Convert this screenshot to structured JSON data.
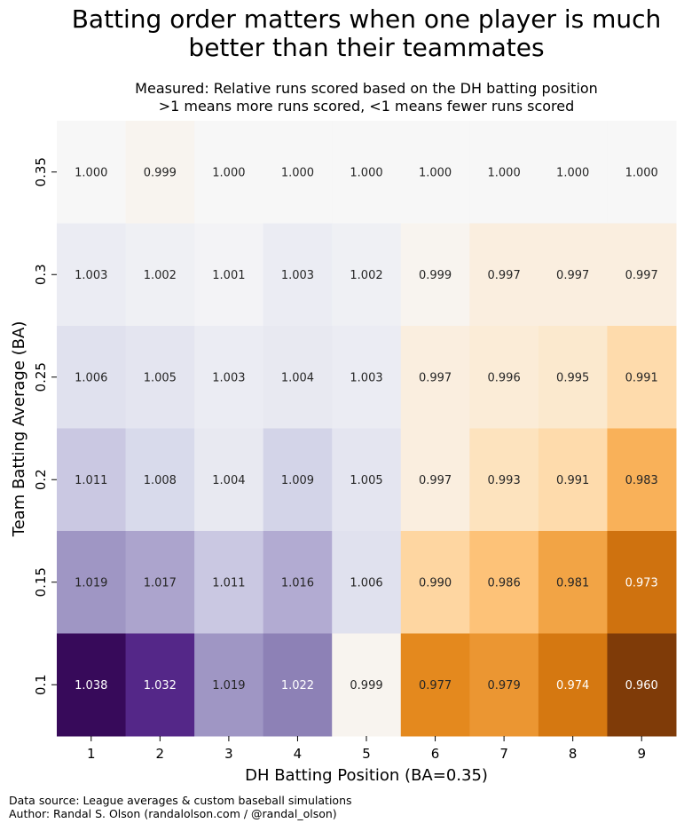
{
  "title_lines": [
    "Batting order matters when one player is much",
    "better than their teammates"
  ],
  "subtitle_lines": [
    "Measured: Relative runs scored based on the DH batting position",
    ">1 means more runs scored, <1 means fewer runs scored"
  ],
  "footer_lines": [
    "Data source: League averages & custom baseball simulations",
    "Author: Randal S. Olson (randalolson.com / @randal_olson)"
  ],
  "chart_data": {
    "type": "heatmap",
    "title": "Batting order matters when one player is much better than their teammates",
    "subtitle": "Measured: Relative runs scored based on the DH batting position\n>1 means more runs scored, <1 means fewer runs scored",
    "xlabel": "DH Batting Position (BA=0.35)",
    "ylabel": "Team Batting Average (BA)",
    "x": [
      "1",
      "2",
      "3",
      "4",
      "5",
      "6",
      "7",
      "8",
      "9"
    ],
    "y": [
      "0.35",
      "0.3",
      "0.25",
      "0.2",
      "0.15",
      "0.1"
    ],
    "values": [
      [
        1.0,
        0.999,
        1.0,
        1.0,
        1.0,
        1.0,
        1.0,
        1.0,
        1.0
      ],
      [
        1.003,
        1.002,
        1.001,
        1.003,
        1.002,
        0.999,
        0.997,
        0.997,
        0.997
      ],
      [
        1.006,
        1.005,
        1.003,
        1.004,
        1.003,
        0.997,
        0.996,
        0.995,
        0.991
      ],
      [
        1.011,
        1.008,
        1.004,
        1.009,
        1.005,
        0.997,
        0.993,
        0.991,
        0.983
      ],
      [
        1.019,
        1.017,
        1.011,
        1.016,
        1.006,
        0.99,
        0.986,
        0.981,
        0.973
      ],
      [
        1.038,
        1.032,
        1.019,
        1.022,
        0.999,
        0.977,
        0.979,
        0.974,
        0.96
      ]
    ],
    "colormap": "PuOr (orange low, purple high)",
    "color_low": "#7f3b08",
    "color_mid": "#f7f7f7",
    "color_high": "#2d004b",
    "value_range": [
      0.96,
      1.04
    ],
    "colorbar": false,
    "grid": false
  }
}
